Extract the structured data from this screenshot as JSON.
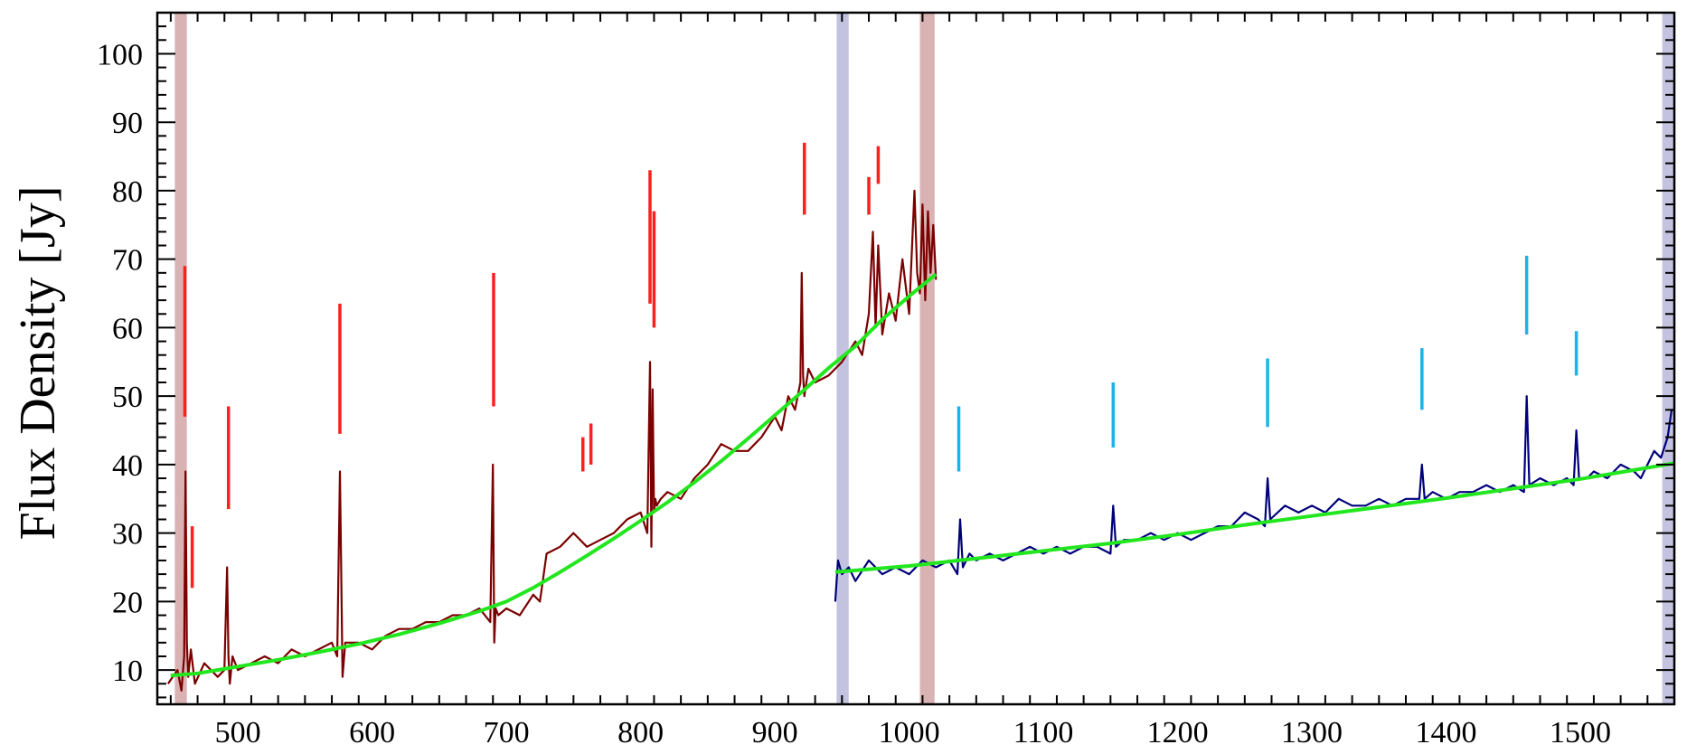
{
  "chart_data": {
    "type": "line",
    "title": "",
    "xlabel": "",
    "ylabel": "Flux Density [Jy]",
    "xlim": [
      440,
      1570
    ],
    "ylim": [
      5,
      106
    ],
    "x_ticks": [
      500,
      600,
      700,
      800,
      900,
      1000,
      1100,
      1200,
      1300,
      1400,
      1500
    ],
    "y_ticks": [
      10,
      20,
      30,
      40,
      50,
      60,
      70,
      80,
      90,
      100
    ],
    "grid": false,
    "legend": "none",
    "colors": {
      "series_red": "#7b0000",
      "series_blue": "#00007b",
      "fit": "#22e61e",
      "line_marker_red": "#ff1f1f",
      "line_marker_cyan": "#1cb2ea",
      "band_red": "#d9b3b3",
      "band_blue": "#c3c3e0"
    },
    "shaded_bands": [
      {
        "x0": 453,
        "x1": 462,
        "color": "band_red"
      },
      {
        "x0": 946,
        "x1": 955,
        "color": "band_blue"
      },
      {
        "x0": 1008,
        "x1": 1019,
        "color": "band_red"
      },
      {
        "x0": 1561,
        "x1": 1570,
        "color": "band_blue"
      }
    ],
    "series": [
      {
        "color": "series_red",
        "x": [
          448,
          455,
          458,
          460,
          461,
          462,
          463,
          465,
          468,
          475,
          485,
          490,
          492,
          493,
          494,
          496,
          500,
          510,
          520,
          530,
          540,
          550,
          560,
          570,
          574,
          576,
          578,
          580,
          590,
          600,
          610,
          620,
          630,
          640,
          650,
          660,
          670,
          680,
          688,
          690,
          691,
          692,
          694,
          700,
          710,
          720,
          725,
          730,
          740,
          750,
          760,
          770,
          780,
          790,
          800,
          805,
          807,
          808,
          809,
          810,
          811,
          812,
          815,
          820,
          830,
          840,
          850,
          860,
          870,
          880,
          890,
          900,
          905,
          910,
          915,
          919,
          920,
          921,
          922,
          925,
          930,
          940,
          950,
          960,
          965,
          970,
          973,
          975,
          977,
          980,
          985,
          990,
          995,
          1000,
          1004,
          1006,
          1008,
          1010,
          1012,
          1014,
          1016,
          1018,
          1020
        ],
        "y": [
          8,
          10,
          7,
          12,
          39,
          14,
          9,
          13,
          8,
          11,
          9,
          10,
          25,
          12,
          8,
          12,
          10,
          11,
          12,
          11,
          13,
          12,
          13,
          14,
          12,
          39,
          9,
          14,
          14,
          13,
          15,
          16,
          16,
          17,
          17,
          18,
          18,
          19,
          17,
          40,
          14,
          19,
          18,
          19,
          18,
          21,
          20,
          27,
          28,
          30,
          28,
          29,
          30,
          32,
          33,
          30,
          55,
          28,
          51,
          33,
          35,
          34,
          35,
          36,
          35,
          38,
          40,
          43,
          42,
          42,
          44,
          47,
          45,
          50,
          48,
          52,
          68,
          53,
          50,
          54,
          52,
          53,
          55,
          58,
          56,
          62,
          74,
          60,
          72,
          59,
          65,
          61,
          70,
          62,
          80,
          68,
          65,
          78,
          64,
          77,
          68,
          75,
          67
        ]
      },
      {
        "color": "series_blue",
        "x": [
          945,
          947,
          950,
          955,
          960,
          970,
          980,
          990,
          1000,
          1010,
          1020,
          1030,
          1036,
          1038,
          1040,
          1045,
          1050,
          1060,
          1070,
          1080,
          1090,
          1100,
          1110,
          1120,
          1130,
          1140,
          1150,
          1152,
          1154,
          1160,
          1170,
          1180,
          1190,
          1200,
          1210,
          1220,
          1230,
          1240,
          1250,
          1260,
          1265,
          1267,
          1269,
          1280,
          1290,
          1300,
          1310,
          1320,
          1330,
          1340,
          1350,
          1360,
          1370,
          1380,
          1382,
          1384,
          1390,
          1400,
          1410,
          1420,
          1430,
          1440,
          1450,
          1458,
          1460,
          1462,
          1470,
          1480,
          1490,
          1495,
          1497,
          1499,
          1505,
          1510,
          1520,
          1530,
          1540,
          1545,
          1550,
          1555,
          1560,
          1565,
          1568
        ],
        "y": [
          20,
          26,
          24,
          25,
          23,
          26,
          24,
          25,
          24,
          26,
          25,
          26,
          24,
          32,
          25,
          27,
          26,
          27,
          26,
          27,
          28,
          27,
          28,
          27,
          28,
          28,
          27,
          34,
          28,
          29,
          29,
          30,
          29,
          30,
          29,
          30,
          31,
          31,
          33,
          32,
          31,
          38,
          32,
          34,
          33,
          34,
          33,
          35,
          34,
          34,
          35,
          34,
          35,
          35,
          40,
          35,
          36,
          35,
          36,
          36,
          37,
          36,
          37,
          36,
          50,
          37,
          38,
          37,
          38,
          37,
          45,
          38,
          38,
          39,
          38,
          40,
          39,
          38,
          40,
          42,
          41,
          44,
          48
        ]
      },
      {
        "color": "fit",
        "x": [
          450,
          470,
          500,
          530,
          560,
          590,
          620,
          650,
          680,
          700,
          720,
          740,
          760,
          780,
          800,
          820,
          840,
          860,
          880,
          900,
          920,
          940,
          960,
          980,
          1000,
          1020
        ],
        "y": [
          9.2,
          9.5,
          10.5,
          11.5,
          12.6,
          13.8,
          15.2,
          16.8,
          18.6,
          20.0,
          22.0,
          24.3,
          26.7,
          29.2,
          31.8,
          34.5,
          37.4,
          40.5,
          43.8,
          47.2,
          50.6,
          54.1,
          57.3,
          61.2,
          64.6,
          67.8
        ]
      },
      {
        "color": "fit",
        "x": [
          945,
          1000,
          1050,
          1100,
          1150,
          1200,
          1250,
          1300,
          1350,
          1400,
          1450,
          1500,
          1570
        ],
        "y": [
          24.3,
          25.2,
          26.3,
          27.4,
          28.5,
          29.8,
          31.2,
          32.5,
          33.8,
          35.1,
          36.5,
          37.9,
          40.2
        ]
      }
    ],
    "line_markers": [
      {
        "x": 460.5,
        "y0": 47,
        "y1": 69,
        "color": "line_marker_red"
      },
      {
        "x": 466,
        "y0": 22,
        "y1": 31,
        "color": "line_marker_red"
      },
      {
        "x": 493,
        "y0": 33.5,
        "y1": 48.5,
        "color": "line_marker_red"
      },
      {
        "x": 576,
        "y0": 44.5,
        "y1": 63.5,
        "color": "line_marker_red"
      },
      {
        "x": 690.5,
        "y0": 48.5,
        "y1": 68,
        "color": "line_marker_red"
      },
      {
        "x": 757,
        "y0": 39,
        "y1": 44,
        "color": "line_marker_red"
      },
      {
        "x": 763,
        "y0": 40,
        "y1": 46,
        "color": "line_marker_red"
      },
      {
        "x": 807,
        "y0": 63.5,
        "y1": 83,
        "color": "line_marker_red"
      },
      {
        "x": 810,
        "y0": 60,
        "y1": 77,
        "color": "line_marker_red"
      },
      {
        "x": 922,
        "y0": 76.5,
        "y1": 87,
        "color": "line_marker_red"
      },
      {
        "x": 970,
        "y0": 76.5,
        "y1": 82,
        "color": "line_marker_red"
      },
      {
        "x": 977,
        "y0": 81,
        "y1": 86.5,
        "color": "line_marker_red"
      },
      {
        "x": 1037,
        "y0": 39,
        "y1": 48.5,
        "color": "line_marker_cyan"
      },
      {
        "x": 1152,
        "y0": 42.5,
        "y1": 52,
        "color": "line_marker_cyan"
      },
      {
        "x": 1267,
        "y0": 45.5,
        "y1": 55.5,
        "color": "line_marker_cyan"
      },
      {
        "x": 1382,
        "y0": 48,
        "y1": 57,
        "color": "line_marker_cyan"
      },
      {
        "x": 1460,
        "y0": 59,
        "y1": 70.5,
        "color": "line_marker_cyan"
      },
      {
        "x": 1497,
        "y0": 53,
        "y1": 59.5,
        "color": "line_marker_cyan"
      }
    ]
  }
}
